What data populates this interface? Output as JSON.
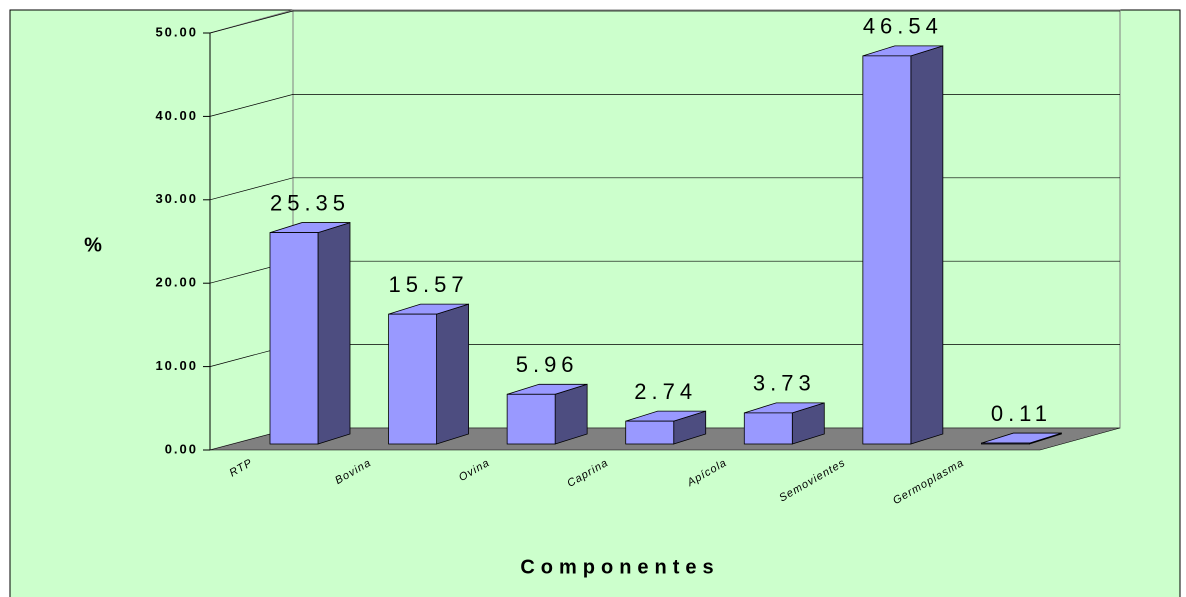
{
  "chart_data": {
    "type": "bar3d",
    "y_label": "%",
    "x_label": "Componentes",
    "categories": [
      "RTP",
      "Bovina",
      "Ovina",
      "Caprina",
      "Apícola",
      "Semovientes",
      "Germoplasma"
    ],
    "values": [
      25.35,
      15.57,
      5.96,
      2.74,
      3.73,
      46.54,
      0.11
    ],
    "color": "#9999ff",
    "side_color": "#4d4d80",
    "ylim": [
      0,
      50
    ],
    "yticks": [
      {
        "value": 0,
        "label": "0.00"
      },
      {
        "value": 10,
        "label": "10.00"
      },
      {
        "value": 20,
        "label": "20.00"
      },
      {
        "value": 30,
        "label": "30.00"
      },
      {
        "value": 40,
        "label": "40.00"
      },
      {
        "value": 50,
        "label": "50.00"
      }
    ],
    "grid": true
  }
}
